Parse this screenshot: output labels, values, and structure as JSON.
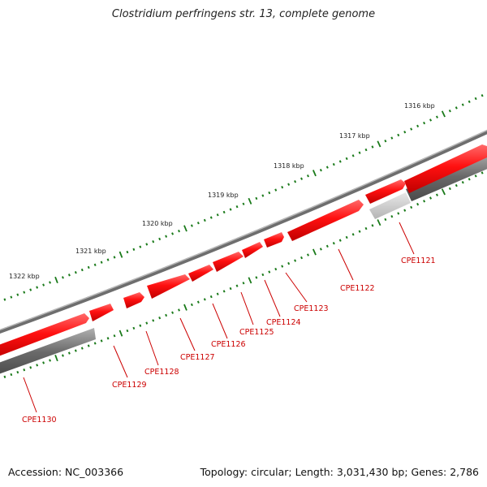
{
  "title": "Clostridium perfringens str. 13, complete genome",
  "footer": {
    "accession": "Accession: NC_003366",
    "stats": "Topology: circular; Length: 3,031,430 bp; Genes: 2,786"
  },
  "colors": {
    "forward_gene": "#ff0000",
    "reverse_gene": "#707070",
    "reverse_gene_light": "#c8c8c8",
    "backbone": "#8a8a8a",
    "tick": "#1a7a1a",
    "label": "#cc0000"
  },
  "kbp_labels": [
    "1316 kbp",
    "1317 kbp",
    "1318 kbp",
    "1319 kbp",
    "1320 kbp",
    "1321 kbp",
    "1322 kbp"
  ],
  "genes": [
    "CPE1121",
    "CPE1122",
    "CPE1123",
    "CPE1124",
    "CPE1125",
    "CPE1126",
    "CPE1127",
    "CPE1128",
    "CPE1129",
    "CPE1130"
  ]
}
